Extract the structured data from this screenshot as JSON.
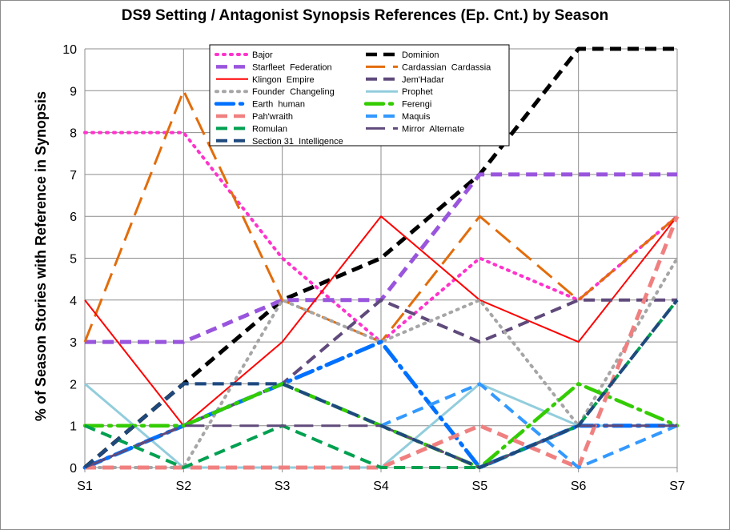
{
  "chart_data": {
    "type": "line",
    "title": "DS9 Setting / Antagonist Synopsis References (Ep. Cnt.) by Season",
    "xlabel": "",
    "ylabel": "% of Season Stories with Reference in Synopsis",
    "categories": [
      "S1",
      "S2",
      "S3",
      "S4",
      "S5",
      "S6",
      "S7"
    ],
    "ylim": [
      0,
      10
    ],
    "yticks": [
      0,
      1,
      2,
      3,
      4,
      5,
      6,
      7,
      8,
      9,
      10
    ],
    "grid": true,
    "legend_position": "top-center",
    "series": [
      {
        "name": "Bajor",
        "values": [
          8,
          8,
          5,
          3,
          5,
          4,
          6
        ],
        "color": "#ff33cc",
        "dash": "dot"
      },
      {
        "name": "Dominion",
        "values": [
          0,
          2,
          4,
          5,
          7,
          10,
          10
        ],
        "color": "#000000",
        "dash": "dash"
      },
      {
        "name": "Starfleet  Federation",
        "values": [
          3,
          3,
          4,
          4,
          7,
          7,
          7
        ],
        "color": "#9955dd",
        "dash": "dash"
      },
      {
        "name": "Cardassian  Cardassia",
        "values": [
          3,
          9,
          4,
          3,
          6,
          4,
          6
        ],
        "color": "#e36c0a",
        "dash": "longdash"
      },
      {
        "name": "Klingon  Empire",
        "values": [
          4,
          1,
          3,
          6,
          4,
          3,
          6
        ],
        "color": "#ff0000",
        "dash": "solid"
      },
      {
        "name": "Jem'Hadar",
        "values": [
          0,
          1,
          2,
          4,
          3,
          4,
          4
        ],
        "color": "#604a7b",
        "dash": "dash"
      },
      {
        "name": "Founder  Changeling",
        "values": [
          0,
          0,
          4,
          3,
          4,
          1,
          5
        ],
        "color": "#a6a6a6",
        "dash": "dot"
      },
      {
        "name": "Prophet",
        "values": [
          2,
          0,
          0,
          0,
          2,
          1,
          1
        ],
        "color": "#92cddc",
        "dash": "solid"
      },
      {
        "name": "Earth  human",
        "values": [
          0,
          1,
          2,
          3,
          0,
          1,
          1
        ],
        "color": "#0070ff",
        "dash": "dashdot"
      },
      {
        "name": "Ferengi",
        "values": [
          1,
          1,
          2,
          1,
          0,
          2,
          1
        ],
        "color": "#33cc00",
        "dash": "dashdot"
      },
      {
        "name": "Pah'wraith",
        "values": [
          0,
          0,
          0,
          0,
          1,
          0,
          6
        ],
        "color": "#f08080",
        "dash": "dash"
      },
      {
        "name": "Maquis",
        "values": [
          0,
          2,
          2,
          1,
          2,
          0,
          1
        ],
        "color": "#3399ff",
        "dash": "dash"
      },
      {
        "name": "Romulan",
        "values": [
          1,
          0,
          1,
          0,
          0,
          1,
          4
        ],
        "color": "#00a050",
        "dash": "dash"
      },
      {
        "name": "Mirror  Alternate",
        "values": [
          0,
          1,
          1,
          1,
          0,
          1,
          1
        ],
        "color": "#604a7b",
        "dash": "longdash"
      },
      {
        "name": "Section 31  Intelligence",
        "values": [
          0,
          2,
          2,
          1,
          0,
          1,
          4
        ],
        "color": "#1f497d",
        "dash": "dash"
      }
    ]
  }
}
